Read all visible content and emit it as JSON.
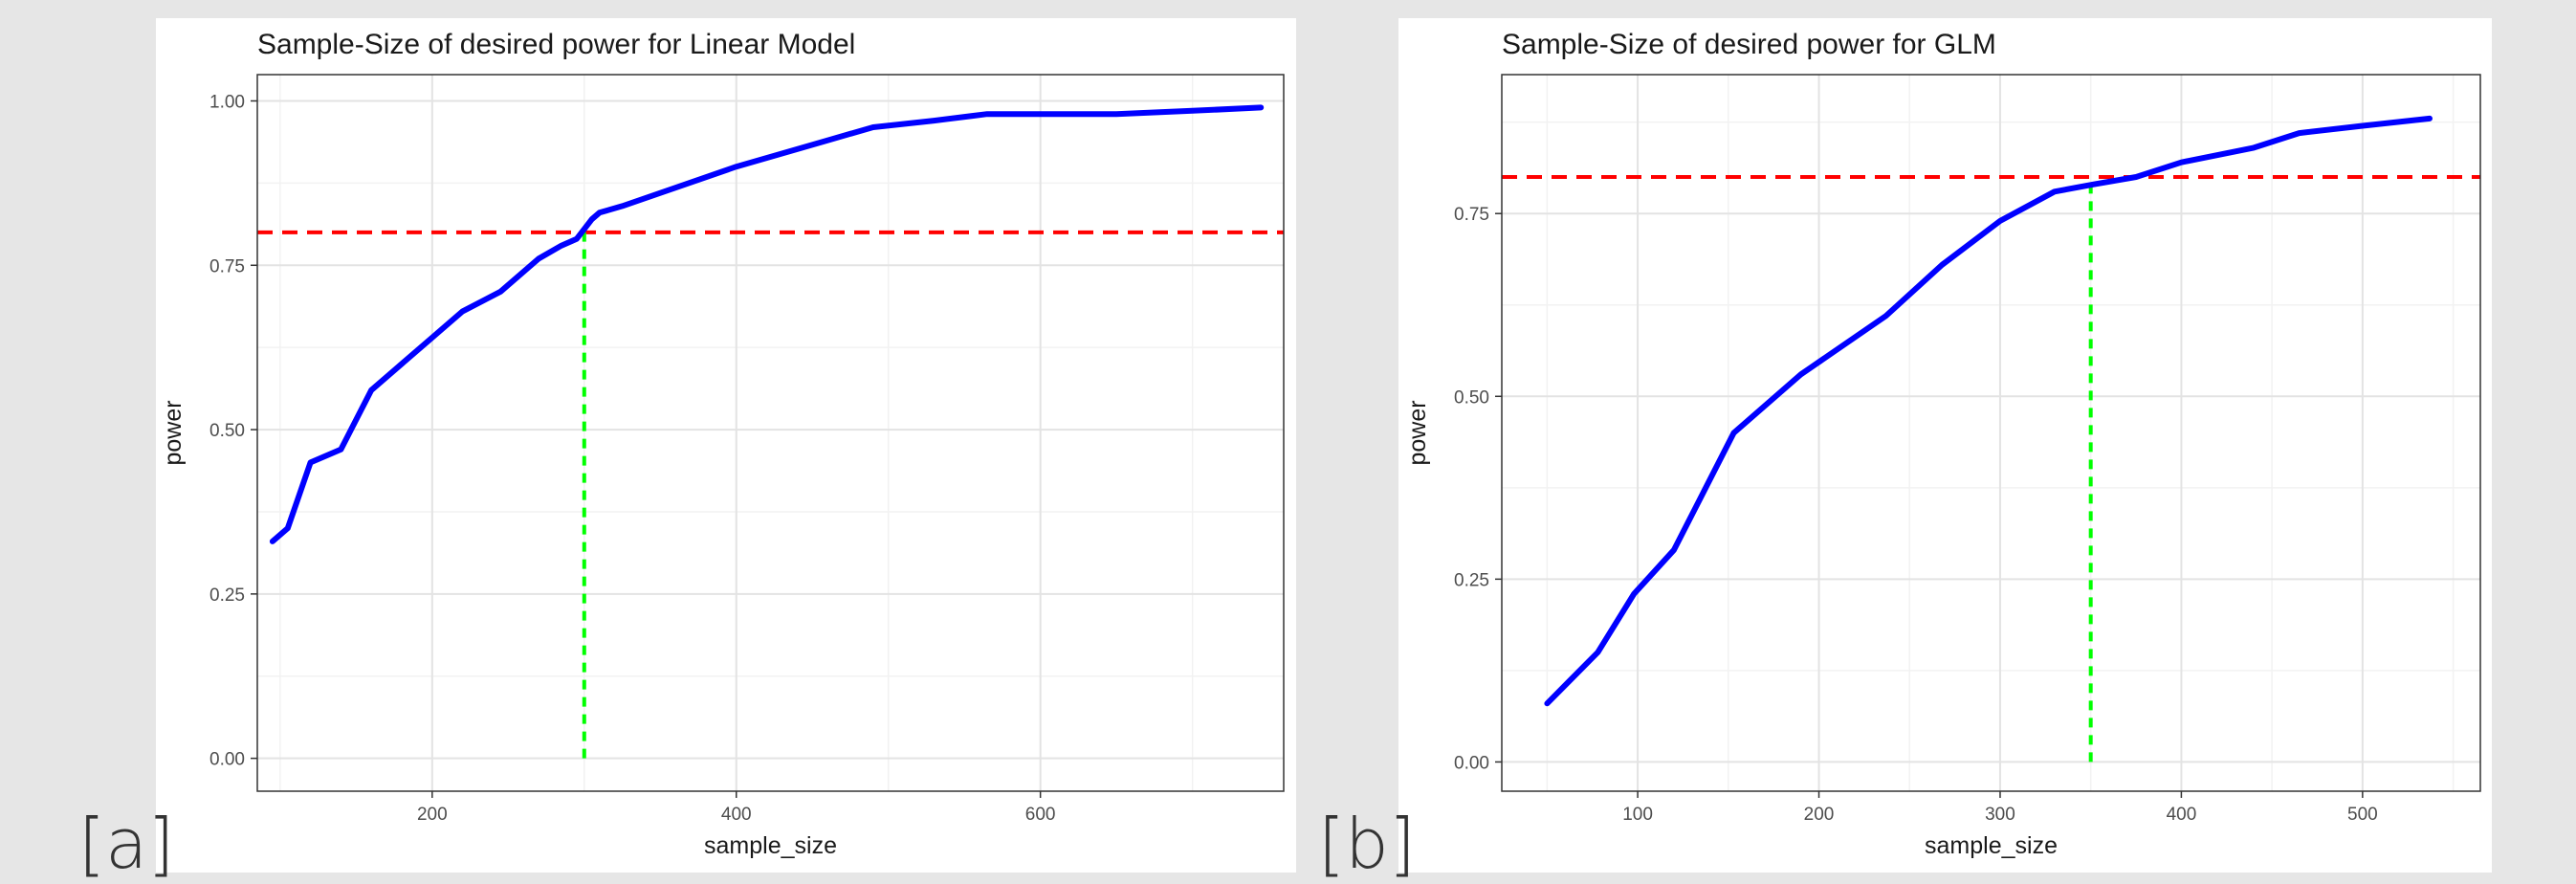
{
  "panels": {
    "a": {
      "tag": "[a]"
    },
    "b": {
      "tag": "[b]"
    }
  },
  "colors": {
    "curve": "#0000ff",
    "target_line": "#ff0000",
    "crossing_line": "#00ff00",
    "grid_major": "#e3e3e3",
    "grid_minor": "#f2f2f2",
    "border": "#333333"
  },
  "chart_data": [
    {
      "type": "line",
      "title": "Sample-Size of desired power for Linear Model",
      "xlabel": "sample_size",
      "ylabel": "power",
      "xlim": [
        85,
        760
      ],
      "ylim": [
        -0.05,
        1.04
      ],
      "xticks": [
        200,
        400,
        600
      ],
      "yticks": [
        0.0,
        0.25,
        0.5,
        0.75,
        1.0
      ],
      "ytick_labels": [
        "0.00",
        "0.25",
        "0.50",
        "0.75",
        "1.00"
      ],
      "grid": true,
      "series": [
        {
          "x": [
            95,
            105,
            120,
            140,
            160,
            180,
            200,
            220,
            245,
            270,
            285,
            295,
            305,
            310,
            325,
            350,
            400,
            430,
            460,
            490,
            530,
            565,
            600,
            650,
            700,
            745
          ],
          "y": [
            0.33,
            0.35,
            0.45,
            0.47,
            0.56,
            0.6,
            0.64,
            0.68,
            0.71,
            0.76,
            0.78,
            0.79,
            0.82,
            0.83,
            0.84,
            0.86,
            0.9,
            0.92,
            0.94,
            0.96,
            0.97,
            0.98,
            0.98,
            0.98,
            0.985,
            0.99
          ]
        }
      ],
      "target_power": 0.8,
      "crossing_sample_size": 300
    },
    {
      "type": "line",
      "title": "Sample-Size of desired power for GLM",
      "xlabel": "sample_size",
      "ylabel": "power",
      "xlim": [
        25,
        565
      ],
      "ylim": [
        -0.04,
        0.94
      ],
      "xticks": [
        100,
        200,
        300,
        400,
        500
      ],
      "yticks": [
        0.0,
        0.25,
        0.5,
        0.75
      ],
      "ytick_labels": [
        "0.00",
        "0.25",
        "0.50",
        "0.75"
      ],
      "grid": true,
      "series": [
        {
          "x": [
            50,
            62,
            78,
            98,
            120,
            153,
            190,
            237,
            268,
            300,
            330,
            352,
            375,
            400,
            440,
            465,
            500,
            537
          ],
          "y": [
            0.08,
            0.11,
            0.15,
            0.23,
            0.29,
            0.45,
            0.53,
            0.61,
            0.68,
            0.74,
            0.78,
            0.79,
            0.8,
            0.82,
            0.84,
            0.86,
            0.87,
            0.88
          ]
        }
      ],
      "target_power": 0.8,
      "crossing_sample_size": 350
    }
  ]
}
